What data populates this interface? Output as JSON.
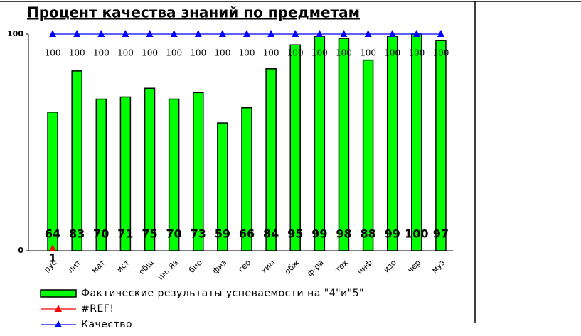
{
  "chart_data": {
    "type": "bar",
    "title": "Процент качества знаний  по предметам",
    "categories": [
      "рус",
      "лит",
      "мат",
      "ист",
      "общ",
      "ин. Яз",
      "био",
      "физ",
      "гео",
      "хим",
      "обж",
      "ф-ра",
      "тех",
      "инф",
      "изо",
      "чер",
      "муз"
    ],
    "series": [
      {
        "name": "Фактические результаты успеваемости на \"4\"и\"5\"",
        "type": "bar",
        "color": "#00ff00",
        "values": [
          64,
          83,
          70,
          71,
          75,
          70,
          73,
          59,
          66,
          84,
          95,
          99,
          98,
          88,
          99,
          100,
          97
        ]
      },
      {
        "name": "#REF!",
        "type": "line",
        "color": "#ff0000",
        "values": [
          1,
          null,
          null,
          null,
          null,
          null,
          null,
          null,
          null,
          null,
          null,
          null,
          null,
          null,
          null,
          null,
          null
        ]
      },
      {
        "name": "Качество",
        "type": "line",
        "color": "#0000ff",
        "values": [
          100,
          100,
          100,
          100,
          100,
          100,
          100,
          100,
          100,
          100,
          100,
          100,
          100,
          100,
          100,
          100,
          100
        ]
      }
    ],
    "ylim": [
      0,
      100
    ],
    "yticks": [
      0,
      100
    ],
    "grid": false
  }
}
